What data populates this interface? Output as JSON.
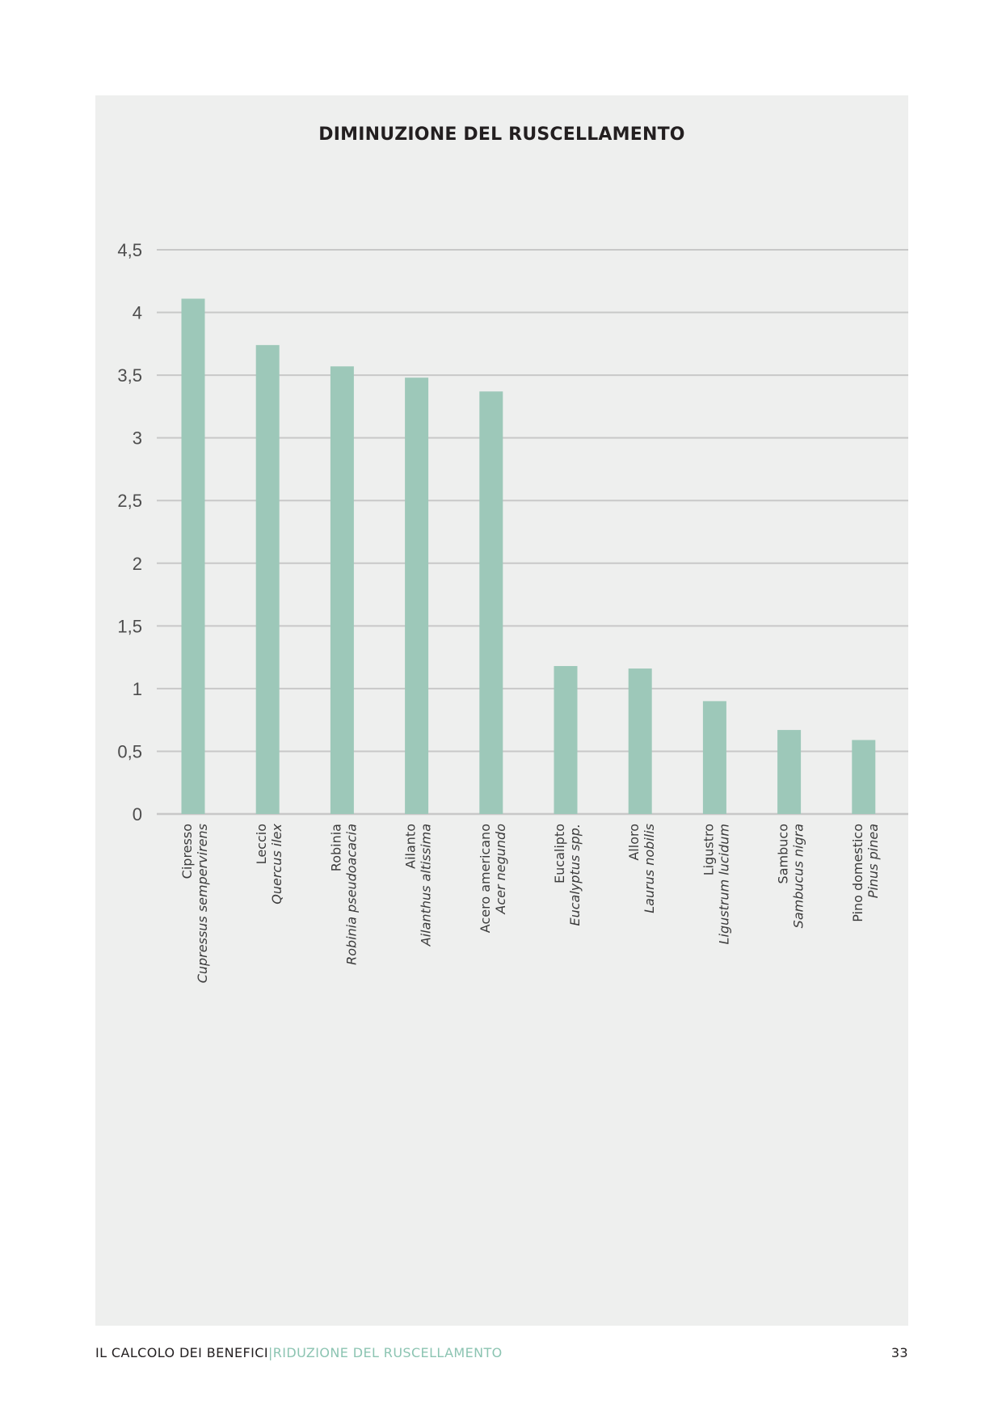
{
  "chart_data": {
    "type": "bar",
    "title": "DIMINUZIONE DEL RUSCELLAMENTO",
    "categories": [
      {
        "common": "Cipresso",
        "scientific": "Cupressus sempervirens"
      },
      {
        "common": "Leccio",
        "scientific": "Quercus ilex"
      },
      {
        "common": "Robinia",
        "scientific": "Robinia pseudoacacia"
      },
      {
        "common": "Ailanto",
        "scientific": "Ailanthus altissima"
      },
      {
        "common": "Acero americano",
        "scientific": "Acer negundo"
      },
      {
        "common": "Eucalipto",
        "scientific": "Eucalyptus spp."
      },
      {
        "common": "Alloro",
        "scientific": "Laurus nobilis"
      },
      {
        "common": "Ligustro",
        "scientific": "Ligustrum lucidum"
      },
      {
        "common": "Sambuco",
        "scientific": "Sambucus nigra"
      },
      {
        "common": "Pino domestico",
        "scientific": "Pinus pinea"
      }
    ],
    "values": [
      4.11,
      3.74,
      3.57,
      3.48,
      3.37,
      1.18,
      1.16,
      0.9,
      0.67,
      0.59
    ],
    "yticks": [
      "0",
      "0,5",
      "1",
      "1,5",
      "2",
      "2,5",
      "3",
      "3,5",
      "4",
      "4,5"
    ],
    "ylim": [
      0,
      4.5
    ],
    "grid": true,
    "colors": {
      "bar": "#9dc8b9",
      "grid": "#c8c8c8",
      "tick_label": "#4d4d4d",
      "category_label": "#3b3b3b"
    }
  },
  "footer": {
    "section": "IL CALCOLO DEI BENEFICI",
    "separator": "|",
    "subsection": "RIDUZIONE DEL RUSCELLAMENTO",
    "page_number": "33"
  }
}
